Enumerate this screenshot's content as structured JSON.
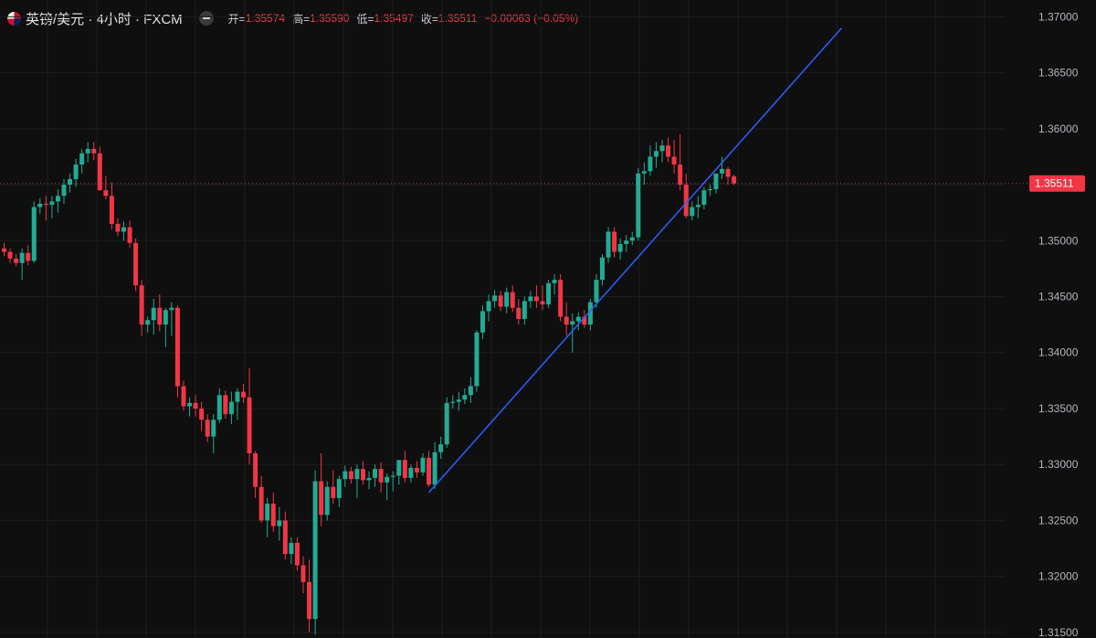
{
  "header": {
    "symbol": "英镑/美元 · 4小时 · FXCM",
    "open_label": "开=",
    "open": "1.35574",
    "high_label": "高=",
    "high": "1.35590",
    "low_label": "低=",
    "low": "1.35497",
    "close_label": "收=",
    "close": "1.35511",
    "change": "−0.00063 (−0.05%)"
  },
  "colors": {
    "up": "#22ab94",
    "down": "#f23645",
    "trendline": "#2962ff",
    "grid": "#1e1e1e",
    "background": "#0f0f0f"
  },
  "last_price_label": "1.35511",
  "chart_data": {
    "type": "candlestick",
    "y_axis_ticks": [
      "1.37000",
      "1.36500",
      "1.36000",
      "1.35500",
      "1.35000",
      "1.34500",
      "1.34000",
      "1.33500",
      "1.33000",
      "1.32500",
      "1.32000",
      "1.31500"
    ],
    "ylim": [
      1.3145,
      1.3715
    ],
    "grid": true,
    "last_price": 1.35511,
    "candles": [
      [
        1.3493,
        1.3498,
        1.3486,
        1.349
      ],
      [
        1.349,
        1.3493,
        1.348,
        1.3484
      ],
      [
        1.3484,
        1.3488,
        1.3477,
        1.348
      ],
      [
        1.348,
        1.3493,
        1.3465,
        1.3489
      ],
      [
        1.3489,
        1.3496,
        1.3478,
        1.3482
      ],
      [
        1.3482,
        1.3535,
        1.348,
        1.353
      ],
      [
        1.353,
        1.3538,
        1.3524,
        1.3533
      ],
      [
        1.3533,
        1.354,
        1.3518,
        1.3532
      ],
      [
        1.3532,
        1.354,
        1.352,
        1.3535
      ],
      [
        1.3535,
        1.3546,
        1.3525,
        1.354
      ],
      [
        1.354,
        1.3555,
        1.3533,
        1.355
      ],
      [
        1.355,
        1.356,
        1.3543,
        1.3555
      ],
      [
        1.3555,
        1.3573,
        1.3548,
        1.3568
      ],
      [
        1.3568,
        1.3582,
        1.356,
        1.3578
      ],
      [
        1.3578,
        1.3588,
        1.357,
        1.3582
      ],
      [
        1.3582,
        1.3588,
        1.3572,
        1.3578
      ],
      [
        1.3578,
        1.3584,
        1.3545,
        1.3545
      ],
      [
        1.3545,
        1.3558,
        1.3537,
        1.354
      ],
      [
        1.354,
        1.3552,
        1.351,
        1.3515
      ],
      [
        1.3515,
        1.352,
        1.3504,
        1.3508
      ],
      [
        1.3508,
        1.3517,
        1.35,
        1.3512
      ],
      [
        1.3512,
        1.3518,
        1.3494,
        1.3498
      ],
      [
        1.3498,
        1.3502,
        1.3455,
        1.346
      ],
      [
        1.346,
        1.3465,
        1.3415,
        1.3425
      ],
      [
        1.3425,
        1.3432,
        1.3418,
        1.3429
      ],
      [
        1.3429,
        1.3448,
        1.3416,
        1.344
      ],
      [
        1.344,
        1.3452,
        1.3419,
        1.3425
      ],
      [
        1.3425,
        1.344,
        1.3405,
        1.3438
      ],
      [
        1.3438,
        1.3445,
        1.3415,
        1.344
      ],
      [
        1.344,
        1.3442,
        1.336,
        1.337
      ],
      [
        1.337,
        1.3375,
        1.3348,
        1.3352
      ],
      [
        1.3352,
        1.336,
        1.3343,
        1.3355
      ],
      [
        1.3355,
        1.3362,
        1.3343,
        1.335
      ],
      [
        1.335,
        1.3356,
        1.333,
        1.334
      ],
      [
        1.334,
        1.3345,
        1.332,
        1.3325
      ],
      [
        1.3325,
        1.3345,
        1.331,
        1.334
      ],
      [
        1.334,
        1.3368,
        1.3337,
        1.3362
      ],
      [
        1.3362,
        1.3366,
        1.3341,
        1.3345
      ],
      [
        1.3345,
        1.3365,
        1.3336,
        1.3356
      ],
      [
        1.3356,
        1.3368,
        1.334,
        1.3365
      ],
      [
        1.3365,
        1.3372,
        1.3355,
        1.336
      ],
      [
        1.336,
        1.3386,
        1.33,
        1.331
      ],
      [
        1.331,
        1.3312,
        1.327,
        1.328
      ],
      [
        1.328,
        1.329,
        1.3248,
        1.325
      ],
      [
        1.325,
        1.327,
        1.3235,
        1.3265
      ],
      [
        1.3265,
        1.3275,
        1.324,
        1.3245
      ],
      [
        1.3245,
        1.3262,
        1.3232,
        1.325
      ],
      [
        1.325,
        1.3258,
        1.3215,
        1.322
      ],
      [
        1.322,
        1.3235,
        1.3211,
        1.323
      ],
      [
        1.323,
        1.3235,
        1.3205,
        1.321
      ],
      [
        1.321,
        1.3218,
        1.3185,
        1.3195
      ],
      [
        1.3195,
        1.3215,
        1.315,
        1.3162
      ],
      [
        1.3162,
        1.3295,
        1.3148,
        1.3285
      ],
      [
        1.3285,
        1.331,
        1.3245,
        1.3255
      ],
      [
        1.3255,
        1.3285,
        1.325,
        1.328
      ],
      [
        1.328,
        1.3295,
        1.3265,
        1.327
      ],
      [
        1.327,
        1.329,
        1.3262,
        1.3287
      ],
      [
        1.3287,
        1.3299,
        1.328,
        1.3294
      ],
      [
        1.3294,
        1.3298,
        1.3283,
        1.3287
      ],
      [
        1.3287,
        1.33,
        1.327,
        1.3296
      ],
      [
        1.3296,
        1.3303,
        1.3282,
        1.3286
      ],
      [
        1.3286,
        1.3294,
        1.3278,
        1.3288
      ],
      [
        1.3288,
        1.33,
        1.328,
        1.3296
      ],
      [
        1.3296,
        1.3302,
        1.3275,
        1.3284
      ],
      [
        1.3284,
        1.3292,
        1.3268,
        1.3289
      ],
      [
        1.3289,
        1.3294,
        1.3276,
        1.329
      ],
      [
        1.329,
        1.33,
        1.3282,
        1.3304
      ],
      [
        1.3304,
        1.3312,
        1.3284,
        1.3288
      ],
      [
        1.3288,
        1.33,
        1.3284,
        1.3297
      ],
      [
        1.3297,
        1.3303,
        1.3288,
        1.3293
      ],
      [
        1.3293,
        1.331,
        1.329,
        1.3306
      ],
      [
        1.3306,
        1.3312,
        1.328,
        1.3282
      ],
      [
        1.3282,
        1.332,
        1.3278,
        1.3311
      ],
      [
        1.3311,
        1.3325,
        1.3305,
        1.3318
      ],
      [
        1.3318,
        1.336,
        1.3315,
        1.3355
      ],
      [
        1.3355,
        1.3362,
        1.335,
        1.3356
      ],
      [
        1.3356,
        1.3365,
        1.3348,
        1.3358
      ],
      [
        1.3358,
        1.3368,
        1.3354,
        1.3362
      ],
      [
        1.3362,
        1.3378,
        1.3355,
        1.337
      ],
      [
        1.337,
        1.342,
        1.3365,
        1.3418
      ],
      [
        1.3418,
        1.3442,
        1.3412,
        1.3437
      ],
      [
        1.3437,
        1.3452,
        1.3428,
        1.3446
      ],
      [
        1.3446,
        1.3456,
        1.344,
        1.3451
      ],
      [
        1.3451,
        1.3455,
        1.3437,
        1.3441
      ],
      [
        1.3441,
        1.3458,
        1.3435,
        1.3454
      ],
      [
        1.3454,
        1.346,
        1.3436,
        1.344
      ],
      [
        1.344,
        1.3448,
        1.3425,
        1.343
      ],
      [
        1.343,
        1.345,
        1.3425,
        1.3446
      ],
      [
        1.3446,
        1.3455,
        1.344,
        1.345
      ],
      [
        1.345,
        1.346,
        1.344,
        1.3446
      ],
      [
        1.3446,
        1.346,
        1.3438,
        1.3443
      ],
      [
        1.3443,
        1.3465,
        1.344,
        1.3462
      ],
      [
        1.3462,
        1.347,
        1.3452,
        1.3465
      ],
      [
        1.3465,
        1.347,
        1.3428,
        1.3432
      ],
      [
        1.3432,
        1.3445,
        1.3415,
        1.3425
      ],
      [
        1.3425,
        1.3435,
        1.34,
        1.3428
      ],
      [
        1.3428,
        1.3436,
        1.342,
        1.3432
      ],
      [
        1.3432,
        1.3438,
        1.3422,
        1.3425
      ],
      [
        1.3425,
        1.3448,
        1.342,
        1.3445
      ],
      [
        1.3445,
        1.347,
        1.344,
        1.3465
      ],
      [
        1.3465,
        1.3488,
        1.346,
        1.3485
      ],
      [
        1.3485,
        1.3512,
        1.348,
        1.3508
      ],
      [
        1.3508,
        1.3512,
        1.3485,
        1.349
      ],
      [
        1.349,
        1.3502,
        1.3483,
        1.3497
      ],
      [
        1.3497,
        1.3505,
        1.349,
        1.35
      ],
      [
        1.35,
        1.3508,
        1.3496,
        1.3503
      ],
      [
        1.3503,
        1.3565,
        1.35,
        1.356
      ],
      [
        1.356,
        1.357,
        1.355,
        1.3562
      ],
      [
        1.3562,
        1.3585,
        1.3558,
        1.3575
      ],
      [
        1.3575,
        1.3588,
        1.3565,
        1.358
      ],
      [
        1.358,
        1.359,
        1.357,
        1.3585
      ],
      [
        1.3585,
        1.3592,
        1.357,
        1.3575
      ],
      [
        1.3575,
        1.359,
        1.356,
        1.3568
      ],
      [
        1.3568,
        1.3595,
        1.3545,
        1.355
      ],
      [
        1.355,
        1.356,
        1.352,
        1.3522
      ],
      [
        1.3522,
        1.3535,
        1.3518,
        1.353
      ],
      [
        1.353,
        1.354,
        1.352,
        1.3532
      ],
      [
        1.3532,
        1.3548,
        1.3528,
        1.3545
      ],
      [
        1.3545,
        1.355,
        1.354,
        1.3546
      ],
      [
        1.3546,
        1.356,
        1.3542,
        1.356
      ],
      [
        1.356,
        1.3575,
        1.3555,
        1.3564
      ],
      [
        1.3564,
        1.3566,
        1.355,
        1.3557
      ],
      [
        1.35574,
        1.3559,
        1.35497,
        1.35511
      ]
    ],
    "trendline": [
      [
        71,
        1.3275
      ],
      [
        140,
        1.369
      ]
    ]
  }
}
